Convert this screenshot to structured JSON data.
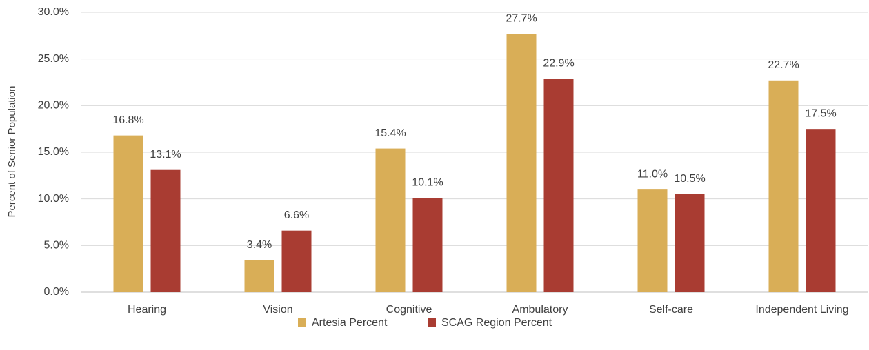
{
  "chart_data": {
    "type": "bar",
    "y_label": "Percent of Senior Population",
    "categories": [
      "Hearing",
      "Vision",
      "Cognitive",
      "Ambulatory",
      "Self-care",
      "Independent Living"
    ],
    "series": [
      {
        "name": "Artesia Percent",
        "color": "#d9ae57",
        "values": [
          16.8,
          3.4,
          15.4,
          27.7,
          11.0,
          22.7
        ],
        "value_labels": [
          "16.8%",
          "3.4%",
          "15.4%",
          "27.7%",
          "11.0%",
          "22.7%"
        ]
      },
      {
        "name": "SCAG Region Percent",
        "color": "#a93c32",
        "values": [
          13.1,
          6.6,
          10.1,
          22.9,
          10.5,
          17.5
        ],
        "value_labels": [
          "13.1%",
          "6.6%",
          "10.1%",
          "22.9%",
          "10.5%",
          "17.5%"
        ]
      }
    ],
    "ylim": [
      0,
      30
    ],
    "yticks": [
      {
        "value": 0,
        "label": "0.0%"
      },
      {
        "value": 5,
        "label": "5.0%"
      },
      {
        "value": 10,
        "label": "10.0%"
      },
      {
        "value": 15,
        "label": "15.0%"
      },
      {
        "value": 20,
        "label": "20.0%"
      },
      {
        "value": 25,
        "label": "25.0%"
      },
      {
        "value": 30,
        "label": "30.0%"
      }
    ],
    "grid": true,
    "legend": "bottom"
  }
}
